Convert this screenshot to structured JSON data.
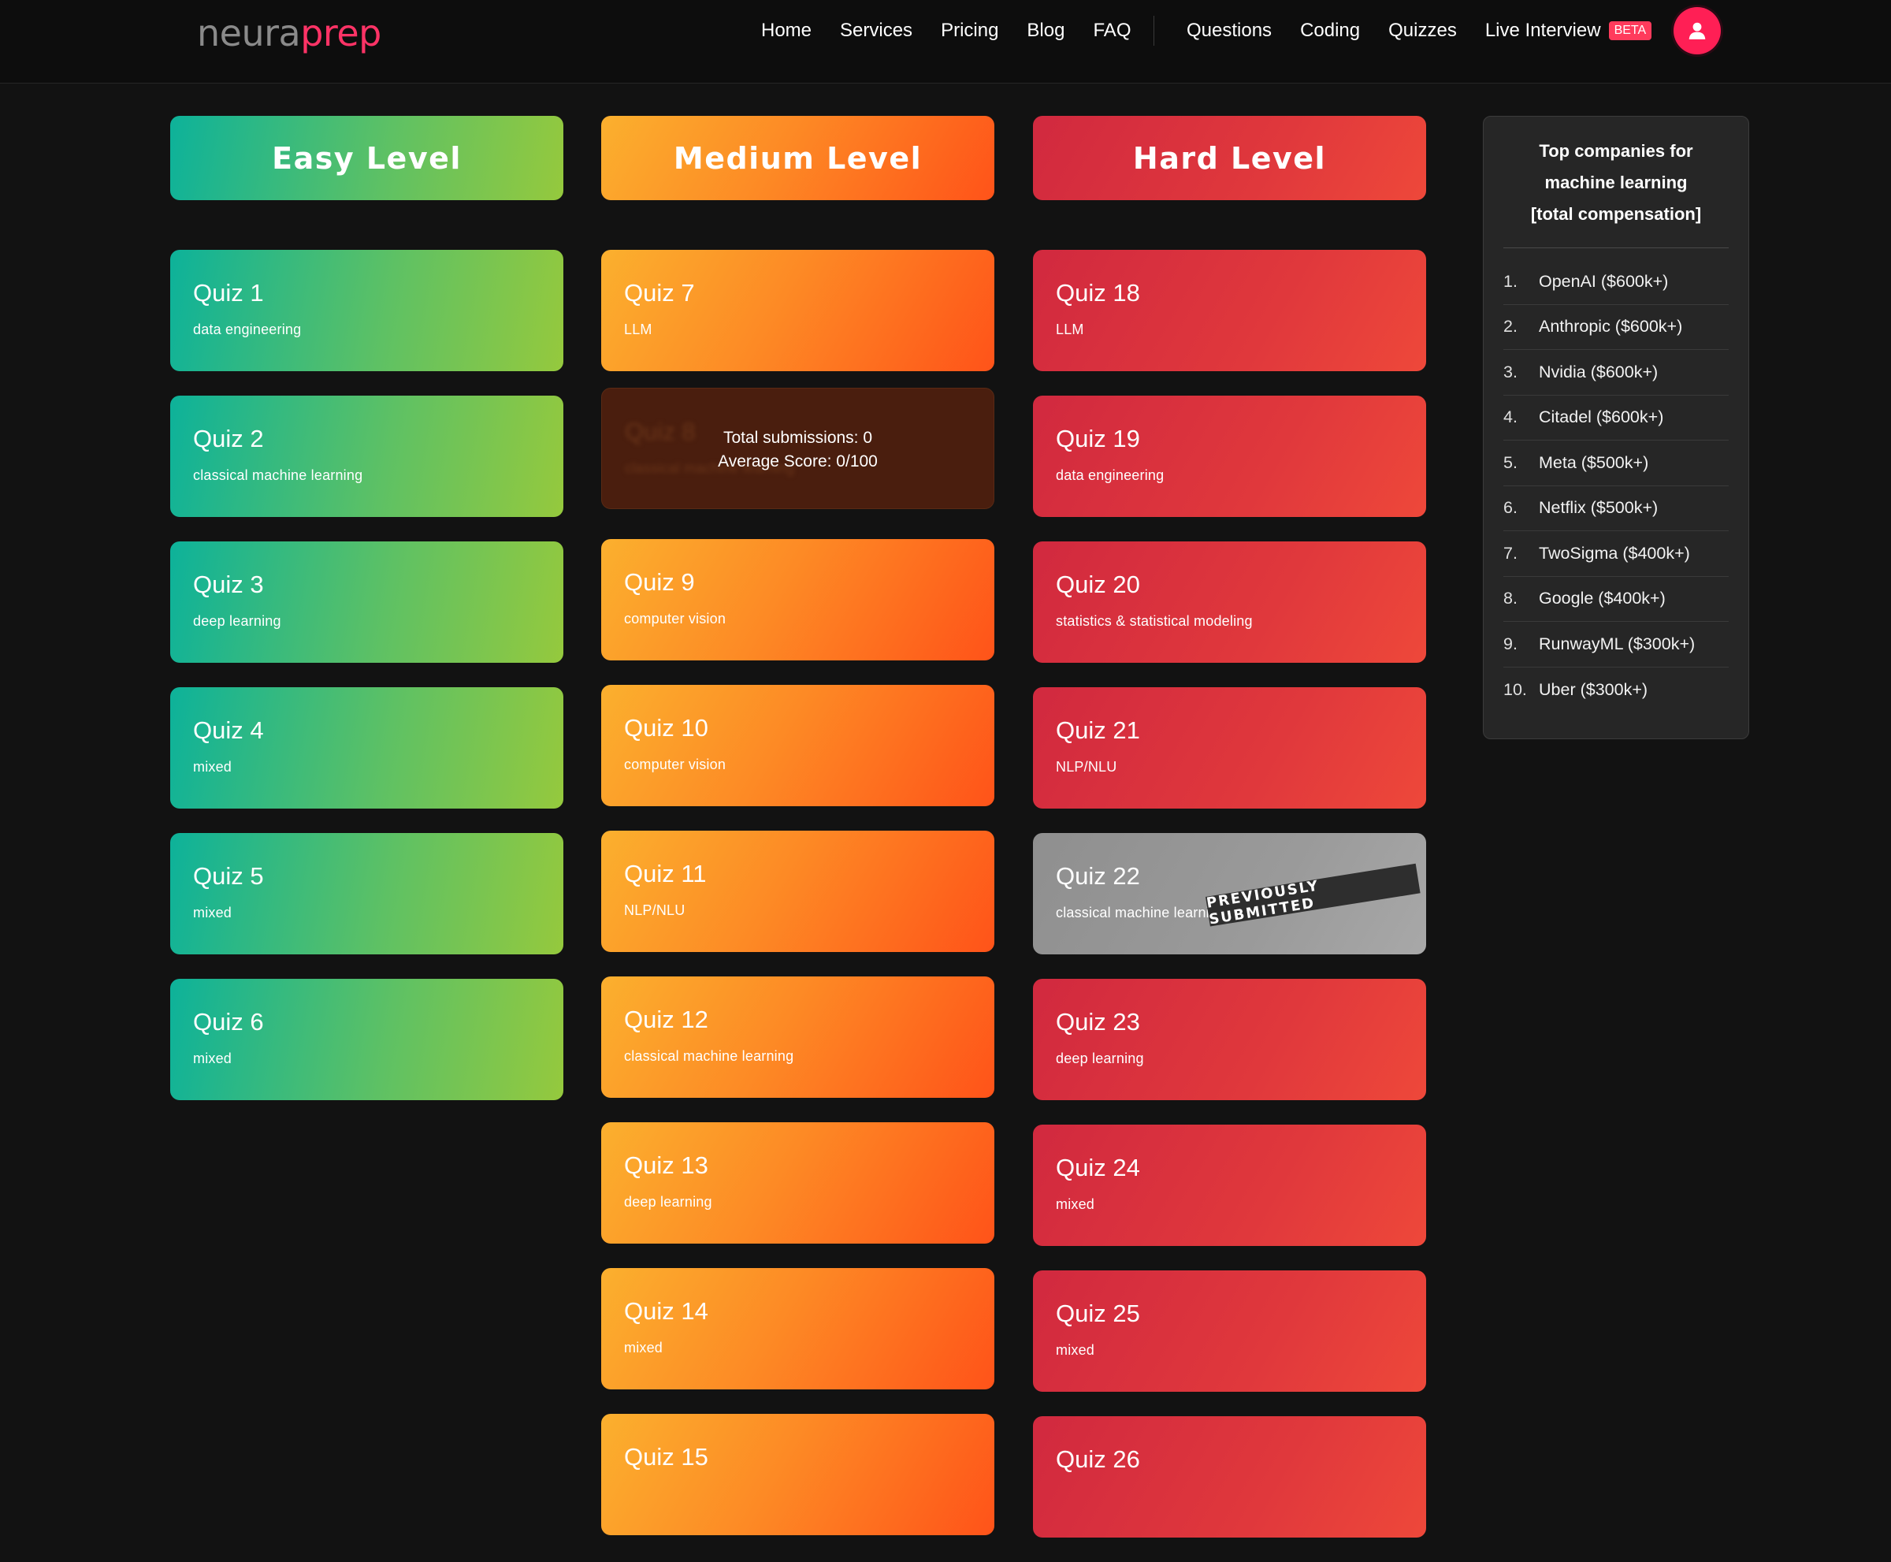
{
  "brand": {
    "part1": "neura",
    "part2": "prep"
  },
  "nav": {
    "left": [
      "Home",
      "Services",
      "Pricing",
      "Blog",
      "FAQ"
    ],
    "right": [
      "Questions",
      "Coding",
      "Quizzes"
    ],
    "live_interview": "Live Interview",
    "beta_badge": "BETA"
  },
  "colors": {
    "accent": "#ff1f55",
    "easy": "#5ec164",
    "medium": "#fd8a25",
    "hard": "#e0383c",
    "submitted": "#9a9a9a"
  },
  "levels": {
    "easy": "Easy Level",
    "medium": "Medium Level",
    "hard": "Hard Level"
  },
  "easy": [
    {
      "title": "Quiz 1",
      "topic": "data engineering"
    },
    {
      "title": "Quiz 2",
      "topic": "classical machine learning"
    },
    {
      "title": "Quiz 3",
      "topic": "deep learning"
    },
    {
      "title": "Quiz 4",
      "topic": "mixed"
    },
    {
      "title": "Quiz 5",
      "topic": "mixed"
    },
    {
      "title": "Quiz 6",
      "topic": "mixed"
    }
  ],
  "medium": [
    {
      "title": "Quiz 7",
      "topic": "LLM"
    },
    {
      "title": "Quiz 8",
      "topic": "classical machine learning",
      "overlay_line1": "Total submissions: 0",
      "overlay_line2": "Average Score: 0/100"
    },
    {
      "title": "Quiz 9",
      "topic": "computer vision"
    },
    {
      "title": "Quiz 10",
      "topic": "computer vision"
    },
    {
      "title": "Quiz 11",
      "topic": "NLP/NLU"
    },
    {
      "title": "Quiz 12",
      "topic": "classical machine learning"
    },
    {
      "title": "Quiz 13",
      "topic": "deep learning"
    },
    {
      "title": "Quiz 14",
      "topic": "mixed"
    },
    {
      "title": "Quiz 15",
      "topic": ""
    }
  ],
  "hard": [
    {
      "title": "Quiz 18",
      "topic": "LLM"
    },
    {
      "title": "Quiz 19",
      "topic": "data engineering"
    },
    {
      "title": "Quiz 20",
      "topic": "statistics & statistical modeling"
    },
    {
      "title": "Quiz 21",
      "topic": "NLP/NLU"
    },
    {
      "title": "Quiz 22",
      "topic": "classical machine learning",
      "stamp": "PREVIOUSLY SUBMITTED"
    },
    {
      "title": "Quiz 23",
      "topic": "deep learning"
    },
    {
      "title": "Quiz 24",
      "topic": "mixed"
    },
    {
      "title": "Quiz 25",
      "topic": "mixed"
    },
    {
      "title": "Quiz 26",
      "topic": ""
    }
  ],
  "sidebar": {
    "heading_line1": "Top companies for",
    "heading_line2": "machine learning",
    "heading_line3": "[total compensation]",
    "companies": [
      {
        "rank": "1.",
        "name": "OpenAI ($600k+)"
      },
      {
        "rank": "2.",
        "name": "Anthropic ($600k+)"
      },
      {
        "rank": "3.",
        "name": "Nvidia ($600k+)"
      },
      {
        "rank": "4.",
        "name": "Citadel ($600k+)"
      },
      {
        "rank": "5.",
        "name": "Meta ($500k+)"
      },
      {
        "rank": "6.",
        "name": "Netflix ($500k+)"
      },
      {
        "rank": "7.",
        "name": "TwoSigma ($400k+)"
      },
      {
        "rank": "8.",
        "name": "Google ($400k+)"
      },
      {
        "rank": "9.",
        "name": "RunwayML ($300k+)"
      },
      {
        "rank": "10.",
        "name": "Uber ($300k+)"
      }
    ]
  }
}
